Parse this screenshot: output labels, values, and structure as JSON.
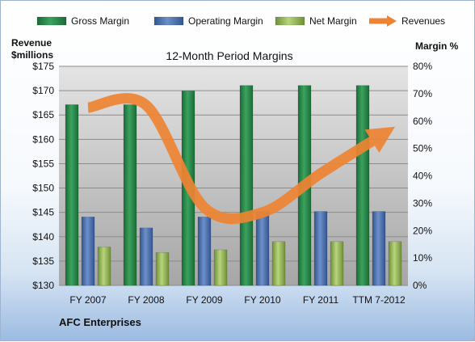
{
  "chart_data": {
    "type": "bar",
    "title": "12-Month Period Margins",
    "company": "AFC Enterprises",
    "left_axis_title": [
      "Revenue",
      "$millions"
    ],
    "right_axis_title": "Margin %",
    "categories": [
      "FY 2007",
      "FY 2008",
      "FY 2009",
      "FY 2010",
      "FY 2011",
      "TTM 7-2012"
    ],
    "left_ticks": [
      "$175",
      "$170",
      "$165",
      "$160",
      "$155",
      "$150",
      "$145",
      "$140",
      "$135",
      "$130"
    ],
    "right_ticks": [
      "80%",
      "70%",
      "60%",
      "50%",
      "40%",
      "30%",
      "20%",
      "10%",
      "0%"
    ],
    "left_ylim": [
      130,
      175
    ],
    "right_ylim": [
      0,
      80
    ],
    "grid": true,
    "legend_position": "top",
    "series": [
      {
        "name": "Gross Margin",
        "axis": "right",
        "color": "#2e8a4c",
        "values": [
          66,
          66,
          71,
          73,
          73,
          73
        ]
      },
      {
        "name": "Operating Margin",
        "axis": "right",
        "color": "#4a6fb0",
        "values": [
          25,
          21,
          25,
          27,
          27,
          27
        ]
      },
      {
        "name": "Net Margin",
        "axis": "right",
        "color": "#93b557",
        "values": [
          14,
          12,
          13,
          16,
          16,
          16
        ]
      },
      {
        "name": "Revenues",
        "axis": "left",
        "type": "line",
        "color": "#ee8433",
        "values": [
          166.5,
          167,
          146,
          145,
          153,
          160.5
        ]
      }
    ]
  }
}
